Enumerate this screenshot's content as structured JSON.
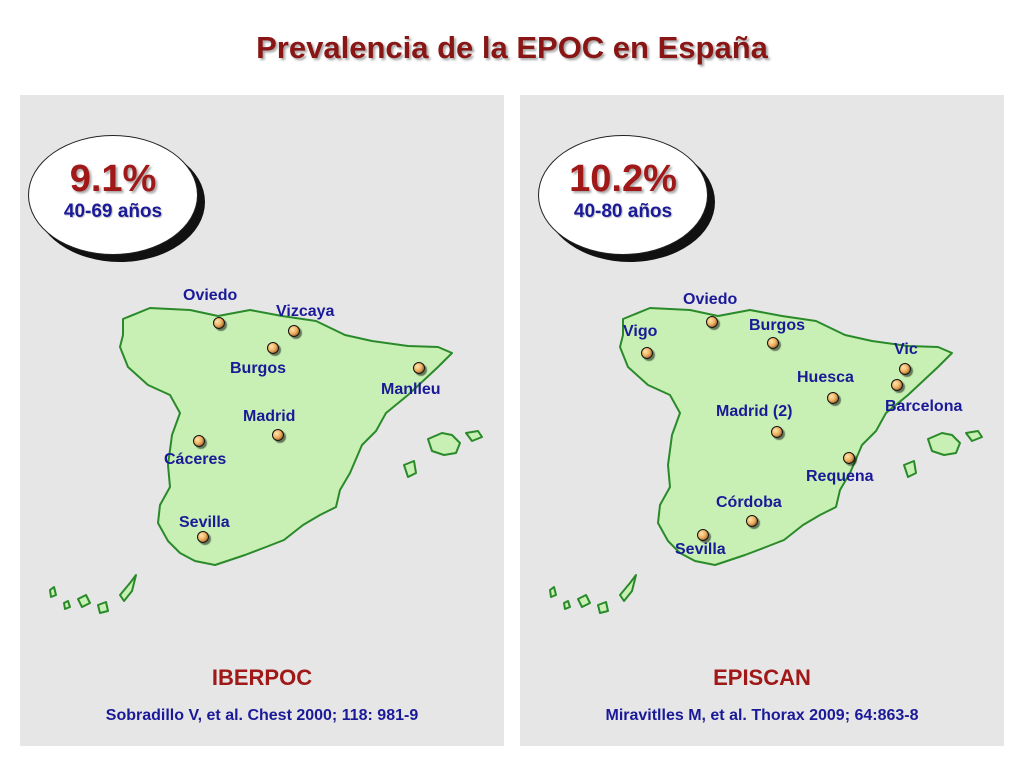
{
  "title": "Prevalencia de la  EPOC en España",
  "colors": {
    "title": "#8a1515",
    "land_fill": "#c8f0b4",
    "land_stroke": "#2a8a2a",
    "city_label": "#1a1a99",
    "panel_bg": "#e6e6e6"
  },
  "panels": [
    {
      "prevalence": "9.1%",
      "age_range": "40-69 años",
      "study": "IBERPOC",
      "reference": "Sobradillo V, et al. Chest 2000; 118: 981-9",
      "cities": [
        "Oviedo",
        "Vizcaya",
        "Burgos",
        "Manlleu",
        "Madrid",
        "Cáceres",
        "Sevilla"
      ]
    },
    {
      "prevalence": "10.2%",
      "age_range": "40-80 años",
      "study": "EPISCAN",
      "reference": "Miravitlles M, et al. Thorax 2009; 64:863-8",
      "cities": [
        "Oviedo",
        "Vigo",
        "Burgos",
        "Vic",
        "Huesca",
        "Barcelona",
        "Madrid (2)",
        "Requena",
        "Córdoba",
        "Sevilla"
      ]
    }
  ]
}
